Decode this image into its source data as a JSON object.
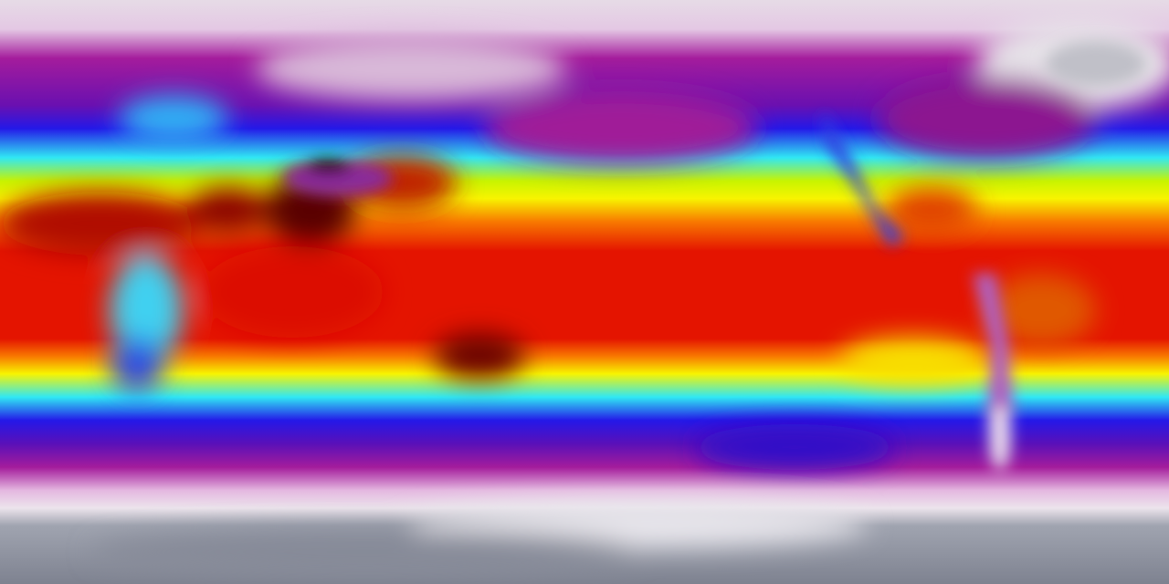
{
  "map": {
    "kind": "global temperature field",
    "palette": {
      "polar_cold": "#8a8e9c",
      "very_cold": "#ecdcec",
      "cold": "#a41c9c",
      "cool": "#2418e8",
      "mild": "#30e8f4",
      "warm": "#f8f400",
      "hot": "#f87800",
      "very_hot": "#e41400",
      "extreme": "#5a0000",
      "highland": "#8a2c9a"
    }
  }
}
